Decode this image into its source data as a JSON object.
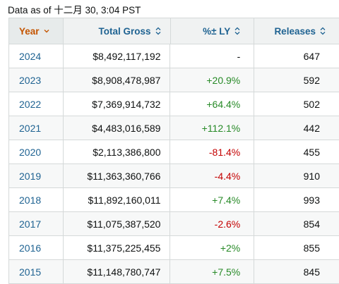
{
  "timestamp": "Data as of 十二月 30, 3:04 PST",
  "columns": {
    "year": "Year",
    "gross": "Total Gross",
    "pct": "%± LY",
    "releases": "Releases"
  },
  "rows": [
    {
      "year": "2024",
      "gross": "$8,492,117,192",
      "pct": "-",
      "releases": "647",
      "trend": "neutral"
    },
    {
      "year": "2023",
      "gross": "$8,908,478,987",
      "pct": "+20.9%",
      "releases": "592",
      "trend": "pos"
    },
    {
      "year": "2022",
      "gross": "$7,369,914,732",
      "pct": "+64.4%",
      "releases": "502",
      "trend": "pos"
    },
    {
      "year": "2021",
      "gross": "$4,483,016,589",
      "pct": "+112.1%",
      "releases": "442",
      "trend": "pos"
    },
    {
      "year": "2020",
      "gross": "$2,113,386,800",
      "pct": "-81.4%",
      "releases": "455",
      "trend": "neg"
    },
    {
      "year": "2019",
      "gross": "$11,363,360,766",
      "pct": "-4.4%",
      "releases": "910",
      "trend": "neg"
    },
    {
      "year": "2018",
      "gross": "$11,892,160,011",
      "pct": "+7.4%",
      "releases": "993",
      "trend": "pos"
    },
    {
      "year": "2017",
      "gross": "$11,075,387,520",
      "pct": "-2.6%",
      "releases": "854",
      "trend": "neg"
    },
    {
      "year": "2016",
      "gross": "$11,375,225,455",
      "pct": "+2%",
      "releases": "855",
      "trend": "pos"
    },
    {
      "year": "2015",
      "gross": "$11,148,780,747",
      "pct": "+7.5%",
      "releases": "845",
      "trend": "pos"
    }
  ],
  "colors": {
    "link": "#1f6392",
    "active_sort": "#c45500",
    "positive": "#278a27",
    "negative": "#c40000"
  },
  "icons": {
    "year_sort": "chevron-down-icon",
    "column_sort": "sort-updown-icon"
  }
}
